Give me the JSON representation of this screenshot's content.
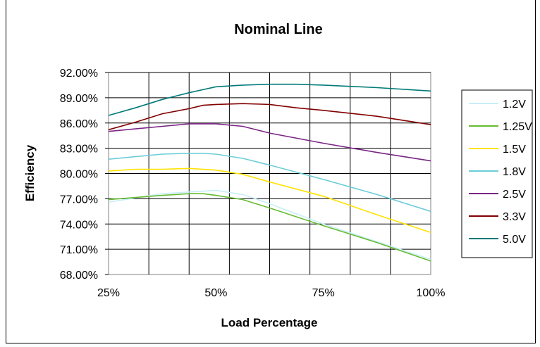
{
  "chart_data": {
    "type": "line",
    "title": "Nominal Line",
    "xlabel": "Load Percentage",
    "ylabel": "Efficiency",
    "xlim": [
      25,
      100
    ],
    "ylim": [
      68,
      92
    ],
    "xticks": [
      25,
      50,
      75,
      100
    ],
    "xtick_labels": [
      "25%",
      "50%",
      "75%",
      "100%"
    ],
    "yticks": [
      68,
      71,
      74,
      77,
      80,
      83,
      86,
      89,
      92
    ],
    "ytick_labels": [
      "68.00%",
      "71.00%",
      "74.00%",
      "77.00%",
      "80.00%",
      "83.00%",
      "86.00%",
      "89.00%",
      "92.00%"
    ],
    "grid": true,
    "legend_position": "right",
    "series": [
      {
        "name": "1.2V",
        "color": "#c9eef8",
        "x": [
          25,
          37.5,
          50,
          56.25,
          62.5,
          75,
          87.5,
          100
        ],
        "y": [
          76.6,
          77.6,
          78.0,
          77.5,
          76.4,
          74.0,
          71.9,
          69.8
        ]
      },
      {
        "name": "1.25V",
        "color": "#66bb33",
        "x": [
          25,
          37.5,
          43.75,
          47,
          50,
          56.25,
          62.5,
          75,
          87.5,
          100
        ],
        "y": [
          76.9,
          77.4,
          77.6,
          77.6,
          77.4,
          76.9,
          75.9,
          73.8,
          71.8,
          69.6
        ]
      },
      {
        "name": "1.5V",
        "color": "#ffe200",
        "x": [
          25,
          31.25,
          37.5,
          43.75,
          50,
          56.25,
          62.5,
          75,
          87.5,
          100
        ],
        "y": [
          80.3,
          80.5,
          80.5,
          80.6,
          80.4,
          79.9,
          79.0,
          77.3,
          75.1,
          73.0
        ]
      },
      {
        "name": "1.8V",
        "color": "#6ccdd8",
        "x": [
          25,
          31.25,
          37.5,
          43.75,
          47,
          50,
          56.25,
          62.5,
          75,
          87.5,
          100
        ],
        "y": [
          81.7,
          82.0,
          82.3,
          82.4,
          82.4,
          82.3,
          81.8,
          81.0,
          79.3,
          77.5,
          75.5
        ]
      },
      {
        "name": "2.5V",
        "color": "#7a2585",
        "x": [
          25,
          31.25,
          37.5,
          43.75,
          50,
          56.25,
          62.5,
          75,
          87.5,
          100
        ],
        "y": [
          85.0,
          85.3,
          85.6,
          85.9,
          85.9,
          85.6,
          84.8,
          83.6,
          82.5,
          81.5
        ]
      },
      {
        "name": "3.3V",
        "color": "#800000",
        "x": [
          25,
          31.25,
          37.5,
          43.75,
          47,
          50,
          56.25,
          62.5,
          68.75,
          75,
          87.5,
          100
        ],
        "y": [
          85.2,
          86.1,
          87.1,
          87.7,
          88.1,
          88.2,
          88.3,
          88.2,
          87.8,
          87.5,
          86.8,
          85.8
        ]
      },
      {
        "name": "5.0V",
        "color": "#007a78",
        "x": [
          25,
          31.25,
          37.5,
          43.75,
          50,
          56.25,
          62.5,
          68.75,
          75,
          87.5,
          100
        ],
        "y": [
          86.9,
          87.8,
          88.8,
          89.6,
          90.3,
          90.5,
          90.6,
          90.6,
          90.5,
          90.2,
          89.8
        ]
      }
    ]
  }
}
